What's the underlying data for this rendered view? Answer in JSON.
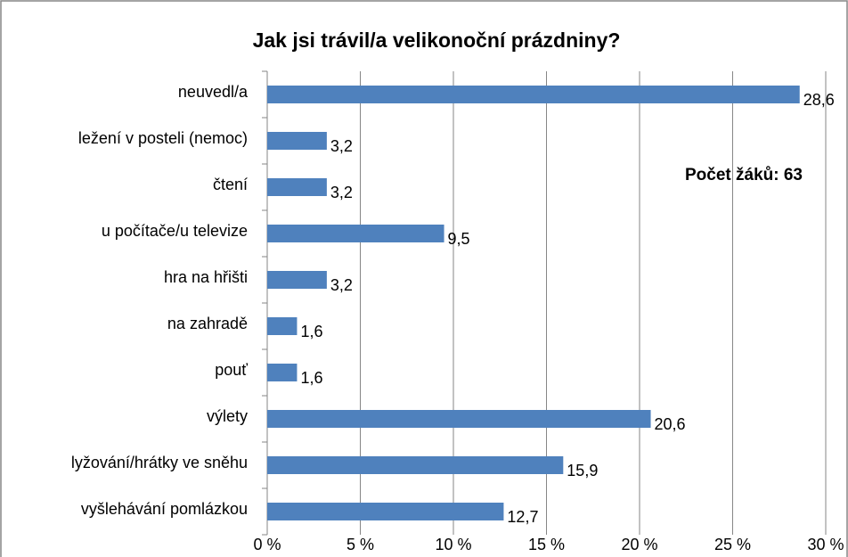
{
  "chart_data": {
    "type": "bar",
    "orientation": "horizontal",
    "title": "Jak jsi trávil/a velikonoční prázdniny?",
    "annotation": "Počet žáků: 63",
    "categories": [
      "neuvedl/a",
      "ležení v posteli (nemoc)",
      "čtení",
      "u počítače/u televize",
      "hra na hřišti",
      "na zahradě",
      "pouť",
      "výlety",
      "lyžování/hrátky ve sněhu",
      "vyšlehávání pomlázkou"
    ],
    "values": [
      28.6,
      3.2,
      3.2,
      9.5,
      3.2,
      1.6,
      1.6,
      20.6,
      15.9,
      12.7
    ],
    "value_labels": [
      "28,6",
      "3,2",
      "3,2",
      "9,5",
      "3,2",
      "1,6",
      "1,6",
      "20,6",
      "15,9",
      "12,7"
    ],
    "color": "#4f81bd",
    "xlim": [
      0,
      30
    ],
    "xticks": [
      {
        "value": 0,
        "label": "0 %"
      },
      {
        "value": 5,
        "label": "5 %"
      },
      {
        "value": 10,
        "label": "10 %"
      },
      {
        "value": 15,
        "label": "15 %"
      },
      {
        "value": 20,
        "label": "20 %"
      },
      {
        "value": 25,
        "label": "25 %"
      },
      {
        "value": 30,
        "label": "30 %"
      }
    ],
    "grid": true
  }
}
